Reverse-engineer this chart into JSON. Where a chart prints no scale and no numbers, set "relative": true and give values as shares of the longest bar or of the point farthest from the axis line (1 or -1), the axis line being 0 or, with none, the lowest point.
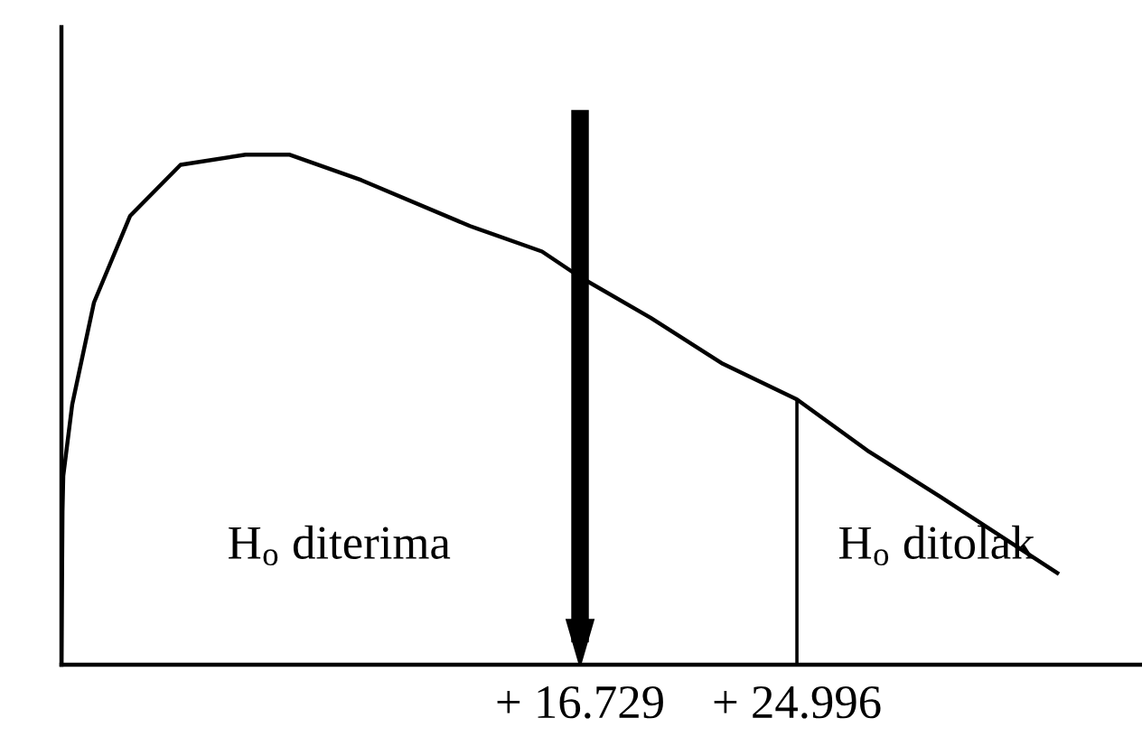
{
  "chart_data": {
    "type": "line",
    "relative": true,
    "color": "#000000",
    "x": [
      -3.04,
      -3.0,
      -2.97,
      -2.63,
      -1.8,
      -0.42,
      1.5,
      3.98,
      5.64,
      8.39,
      12.53,
      15.28,
      16.729,
      19.42,
      22.17,
      24.996,
      27.68,
      30.44,
      34.92
    ],
    "values": [
      0,
      0.3,
      0.37,
      0.51,
      0.71,
      0.88,
      0.98,
      1.0,
      1.0,
      0.95,
      0.86,
      0.81,
      0.76,
      0.68,
      0.59,
      0.52,
      0.42,
      0.33,
      0.18
    ],
    "xlim": [
      -3.04,
      38.15
    ],
    "xticks": [
      {
        "value": 16.729,
        "label": "+ 16.729"
      },
      {
        "value": 24.996,
        "label": "+ 24.996"
      }
    ],
    "ref_lines": [
      {
        "axis": "x",
        "value": 16.729,
        "color": "#000000"
      },
      {
        "axis": "x",
        "value": 24.996,
        "color": "#000000",
        "line_style": "solid"
      }
    ],
    "annotations": [
      "H$_{o}$ diterima",
      "H$_{o}$ ditolak"
    ],
    "grid": false,
    "legend": false
  }
}
